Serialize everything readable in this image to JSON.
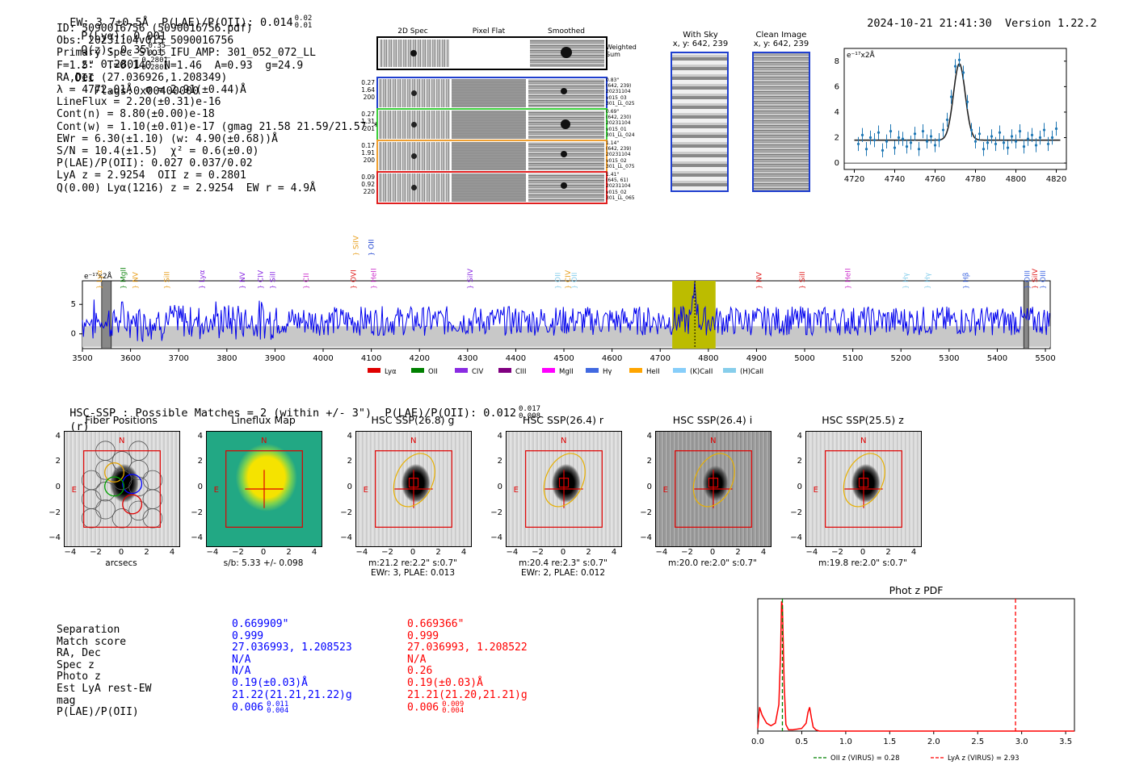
{
  "header": {
    "line": "EW: 3.7±0.5Å  P(LAE)/P(OII): 0.014",
    "ew_sup": "0.02",
    "ew_sub": "0.01",
    "plya_label": "P(Lyα): 0.001",
    "qz_label": "Q(z): 0.35",
    "qz_sup": "0.35",
    "qz_sub": "0.35",
    "z_label": "z: 0.2801",
    "z_sup": "0.2801",
    "z_sub": "0.2801",
    "oii": "OII",
    "flags": "Flags:0x00400000",
    "datetime": "2024-10-21 21:41:30",
    "version": "Version 1.22.2"
  },
  "info": {
    "lines": [
      "ID: 5090016756 (5090016756.pdf)",
      "Obs: 20231104v015_5090016756",
      "Primary Spec_Slot_IFU_AMP: 301_052_072_LL",
      "F=1.5\"  T=0.140  N=1.46  A=0.93  g=24.9",
      "RA,Dec (27.036926,1.208349)",
      "λ = 4772.01Å  σ = 2.91(±0.44)Å",
      "LineFlux = 2.20(±0.31)e-16",
      "Cont(n) = 8.80(±0.00)e-18",
      "Cont(w) = 1.10(±0.01)e-17 (gmag 21.58 21.59/21.57 *)",
      "EWr = 6.30(±1.10) (w: 4.90(±0.68))Å",
      "S/N = 10.4(±1.5)  χ² = 0.6(±0.0)",
      "P(LAE)/P(OII): 0.027 0.037/0.02",
      "LyA z = 2.9254  OII z = 0.2801",
      "Q(0.00) Lyα(1216) z = 2.9254  EW r = 4.9Å"
    ]
  },
  "cutouts": {
    "col_titles": [
      "2D Spec",
      "Pixel Flat",
      "Smoothed"
    ],
    "weighted_label": "Weighted Sum",
    "rows": [
      {
        "left": [
          "0.27",
          "1.64",
          "200"
        ],
        "right": [
          "0.83\"",
          "(642, 239)",
          "20231104",
          "v015_03",
          "301_LL_025"
        ],
        "color": "#1f3fcf"
      },
      {
        "left": [
          "0.27",
          "1.31",
          "201"
        ],
        "right": [
          "0.69\"",
          "(642, 230)",
          "20231104",
          "v015_01",
          "301_LL_024"
        ],
        "color": "#3ccf3c"
      },
      {
        "left": [
          "0.17",
          "1.91",
          "200"
        ],
        "right": [
          "1.14\"",
          "(642, 239)",
          "20231104",
          "v015_02",
          "301_LL_075"
        ],
        "color": "#f0a030"
      },
      {
        "left": [
          "0.09",
          "0.92",
          "220"
        ],
        "right": [
          "1.41\"",
          "(645, 61)",
          "20231104",
          "v015_02",
          "301_LL_065"
        ],
        "color": "#e02020"
      }
    ]
  },
  "sky_panels": {
    "with_sky_title": "With Sky",
    "with_sky_coords": "x, y: 642, 239",
    "clean_title": "Clean Image",
    "clean_coords": "x, y: 642, 239"
  },
  "zoom_chart": {
    "ylabel": "e⁻¹⁷x2Å",
    "x_ticks": [
      "4720",
      "4740",
      "4760",
      "4780",
      "4800",
      "4820"
    ],
    "y_ticks": [
      "0",
      "2",
      "4",
      "6",
      "8"
    ]
  },
  "spectrum": {
    "ylabel": "e⁻¹⁷x2Å",
    "x_ticks": [
      "3500",
      "3600",
      "3700",
      "3800",
      "3900",
      "4000",
      "4100",
      "4200",
      "4300",
      "4400",
      "4500",
      "4600",
      "4700",
      "4800",
      "4900",
      "5000",
      "5100",
      "5200",
      "5300",
      "5400",
      "5500"
    ],
    "y_ticks": [
      "5",
      "0"
    ],
    "lines": [
      {
        "label": "Lyα",
        "x": 3535,
        "color": "#e8a020",
        "row": 0
      },
      {
        "label": "MgII",
        "x": 3585,
        "color": "#1a8a1a",
        "row": 0
      },
      {
        "label": "NV",
        "x": 3610,
        "color": "#e8a020",
        "row": 0
      },
      {
        "label": "SiII",
        "x": 3675,
        "color": "#e8a020",
        "row": 0
      },
      {
        "label": "Lyα",
        "x": 3748,
        "color": "#8a2be2",
        "row": 0
      },
      {
        "label": "NV",
        "x": 3832,
        "color": "#8a2be2",
        "row": 0
      },
      {
        "label": "CIV",
        "x": 3870,
        "color": "#8a2be2",
        "row": 0
      },
      {
        "label": "SiII",
        "x": 3895,
        "color": "#8a2be2",
        "row": 0
      },
      {
        "label": "CII",
        "x": 3965,
        "color": "#cc33cc",
        "row": 0
      },
      {
        "label": "OVI",
        "x": 4063,
        "color": "#e02020",
        "row": 0
      },
      {
        "label": "SiIV",
        "x": 4068,
        "color": "#e8a020",
        "row": 1
      },
      {
        "label": "HeII",
        "x": 4105,
        "color": "#cc33cc",
        "row": 0
      },
      {
        "label": "OII",
        "x": 4100,
        "color": "#1a3fcf",
        "row": 1
      },
      {
        "label": "SiIV",
        "x": 4305,
        "color": "#8a2be2",
        "row": 0
      },
      {
        "label": "OII",
        "x": 4487,
        "color": "#87ceeb",
        "row": 0
      },
      {
        "label": "CIV",
        "x": 4508,
        "color": "#e8a020",
        "row": 0
      },
      {
        "label": "OII",
        "x": 4522,
        "color": "#87ceeb",
        "row": 0
      },
      {
        "label": "NV",
        "x": 4905,
        "color": "#e02020",
        "row": 0
      },
      {
        "label": "SiII",
        "x": 4995,
        "color": "#e02020",
        "row": 0
      },
      {
        "label": "HeII",
        "x": 5090,
        "color": "#cc33cc",
        "row": 0
      },
      {
        "label": "Hγ",
        "x": 5210,
        "color": "#87ceeb",
        "row": 0
      },
      {
        "label": "Hγ",
        "x": 5255,
        "color": "#87ceeb",
        "row": 0
      },
      {
        "label": "Hβ",
        "x": 5335,
        "color": "#4169e1",
        "row": 0
      },
      {
        "label": "OIII",
        "x": 5462,
        "color": "#4169e1",
        "row": 0
      },
      {
        "label": "SiIV",
        "x": 5478,
        "color": "#e02020",
        "row": 0
      },
      {
        "label": "OIII",
        "x": 5495,
        "color": "#4169e1",
        "row": 0
      }
    ],
    "legend": [
      {
        "label": "Lyα",
        "color": "#e00000"
      },
      {
        "label": "OII",
        "color": "#008000"
      },
      {
        "label": "CIV",
        "color": "#8a2be2"
      },
      {
        "label": "CIII",
        "color": "#800080"
      },
      {
        "label": "MgII",
        "color": "#ff00ff"
      },
      {
        "label": "Hγ",
        "color": "#4169e1"
      },
      {
        "label": "HeII",
        "color": "#ffa500"
      },
      {
        "label": "(K)CaII",
        "color": "#87cefa"
      },
      {
        "label": "(H)CaII",
        "color": "#87ceeb"
      }
    ]
  },
  "hsc": {
    "summary": "HSC-SSP : Possible Matches = 2 (within +/- 3\")  P(LAE)/P(OII): 0.012",
    "summary_sup": "0.017",
    "summary_sub": "0.008",
    "summary_tail": "(r)",
    "panels": [
      {
        "title": "Fiber Positions",
        "caption1": "arcsecs",
        "caption2": ""
      },
      {
        "title": "Lineflux Map",
        "caption1": "s/b: 5.33 +/- 0.098",
        "caption2": ""
      },
      {
        "title": "HSC SSP(26.8) g",
        "caption1": "m:21.2  re:2.2\"  s:0.7\"",
        "caption2": "EWr: 3, PLAE: 0.013"
      },
      {
        "title": "HSC SSP(26.4) r",
        "caption1": "m:20.4  re:2.3\"  s:0.7\"",
        "caption2": "EWr: 2, PLAE: 0.012"
      },
      {
        "title": "HSC SSP(26.4) i",
        "caption1": "m:20.0  re:2.0\"  s:0.7\"",
        "caption2": ""
      },
      {
        "title": "HSC SSP(25.5) z",
        "caption1": "m:19.8  re:2.0\"  s:0.7\"",
        "caption2": ""
      }
    ],
    "axis_ticks": [
      "−4",
      "−2",
      "0",
      "2",
      "4"
    ],
    "y_ticks": [
      "4",
      "2",
      "0",
      "−2",
      "−4"
    ],
    "n_label": "N",
    "e_label": "E"
  },
  "match_table": {
    "labels": [
      "Separation",
      "Match score",
      "RA, Dec",
      "Spec z",
      "Photo z",
      "Est LyA rest-EW",
      "mag",
      "P(LAE)/P(OII)"
    ],
    "col1": [
      "0.669909\"",
      "0.999",
      "27.036993, 1.208523",
      "N/A",
      "N/A",
      "0.19(±0.03)Å",
      "21.22(21.21,21.22)g",
      "0.006"
    ],
    "col1_plae_sup": "0.011",
    "col1_plae_sub": "0.004",
    "col2": [
      "0.669366\"",
      "0.999",
      "27.036993, 1.208522",
      "N/A",
      "0.26",
      "0.19(±0.03)Å",
      "21.21(21.20,21.21)g",
      "0.006"
    ],
    "col2_plae_sup": "0.009",
    "col2_plae_sub": "0.004"
  },
  "chart_data": [
    {
      "type": "line",
      "title": "",
      "xlabel": "",
      "ylabel": "e-17x2Å",
      "xlim": [
        4715,
        4825
      ],
      "ylim": [
        -0.5,
        9
      ],
      "x_ticks": [
        4720,
        4740,
        4760,
        4780,
        4800,
        4820
      ],
      "model": {
        "continuum": 1.8,
        "center": 4772.0,
        "sigma": 2.91,
        "amplitude": 6.0
      },
      "points_x": [
        4722,
        4724,
        4726,
        4728,
        4730,
        4732,
        4734,
        4736,
        4738,
        4740,
        4742,
        4744,
        4746,
        4748,
        4750,
        4752,
        4754,
        4756,
        4758,
        4760,
        4762,
        4764,
        4766,
        4768,
        4770,
        4772,
        4774,
        4776,
        4778,
        4780,
        4782,
        4784,
        4786,
        4788,
        4790,
        4792,
        4794,
        4796,
        4798,
        4800,
        4802,
        4804,
        4806,
        4808,
        4810,
        4812,
        4814,
        4816,
        4818,
        4820
      ],
      "points_y": [
        1.5,
        2.2,
        1.1,
        2.0,
        1.8,
        2.4,
        1.0,
        1.7,
        2.5,
        1.2,
        2.0,
        1.9,
        1.3,
        1.6,
        2.3,
        1.1,
        2.5,
        1.7,
        2.1,
        1.4,
        1.8,
        2.6,
        3.4,
        5.2,
        7.6,
        8.1,
        7.1,
        4.8,
        2.6,
        1.7,
        2.3,
        1.1,
        1.6,
        2.1,
        1.5,
        2.4,
        1.6,
        1.2,
        2.1,
        1.7,
        2.5,
        1.3,
        1.9,
        2.2,
        1.4,
        2.0,
        2.6,
        1.5,
        2.0,
        2.7
      ]
    },
    {
      "type": "line",
      "title": "",
      "xlabel": "",
      "ylabel": "e-17x2Å",
      "xlim": [
        3500,
        5510
      ],
      "ylim": [
        -2.5,
        9
      ],
      "highlight_range": [
        4725,
        4815
      ],
      "line_marker": 4772,
      "series": [
        {
          "name": "spectrum",
          "generated": true
        }
      ]
    },
    {
      "type": "line",
      "title": "Phot z PDF",
      "xlabel": "",
      "ylabel": "",
      "xlim": [
        0,
        3.6
      ],
      "ylim": [
        0,
        1.0
      ],
      "x_ticks": [
        "0.0",
        "0.5",
        "1.0",
        "1.5",
        "2.0",
        "2.5",
        "3.0",
        "3.5"
      ],
      "series": [
        {
          "name": "pdf",
          "x": [
            0.0,
            0.02,
            0.05,
            0.1,
            0.15,
            0.2,
            0.24,
            0.26,
            0.27,
            0.28,
            0.3,
            0.32,
            0.35,
            0.4,
            0.5,
            0.55,
            0.57,
            0.59,
            0.61,
            0.63,
            0.66,
            0.7,
            0.8,
            1.0,
            1.5,
            2.0,
            3.0,
            3.6
          ],
          "y": [
            0.02,
            0.18,
            0.12,
            0.06,
            0.04,
            0.06,
            0.2,
            0.6,
            0.98,
            0.95,
            0.35,
            0.05,
            0.01,
            0.01,
            0.02,
            0.06,
            0.14,
            0.18,
            0.1,
            0.03,
            0.01,
            0.0,
            0.0,
            0.0,
            0.0,
            0.0,
            0.0,
            0.0
          ]
        }
      ],
      "vlines": [
        {
          "x": 0.28,
          "label": "OII z (VIRUS) = 0.28",
          "color": "#008000"
        },
        {
          "x": 2.93,
          "label": "LyA z (VIRUS) = 2.93",
          "color": "#ff0000"
        }
      ]
    }
  ]
}
